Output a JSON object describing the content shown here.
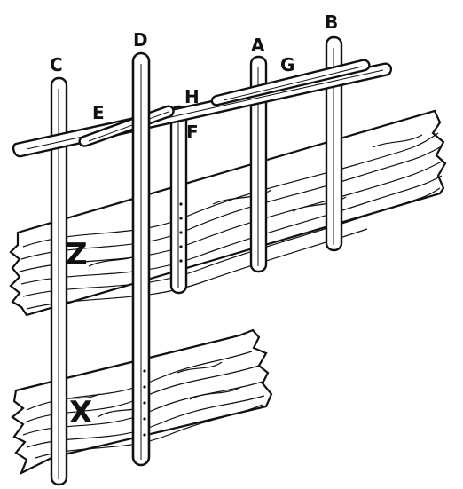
{
  "figure": {
    "labels": {
      "a": "A",
      "b": "B",
      "c": "C",
      "d": "D",
      "e": "E",
      "f": "F",
      "g": "G",
      "h": "H",
      "z": "Z",
      "x": "X"
    },
    "colors": {
      "ink": "#111111",
      "paper": "#ffffff"
    }
  }
}
